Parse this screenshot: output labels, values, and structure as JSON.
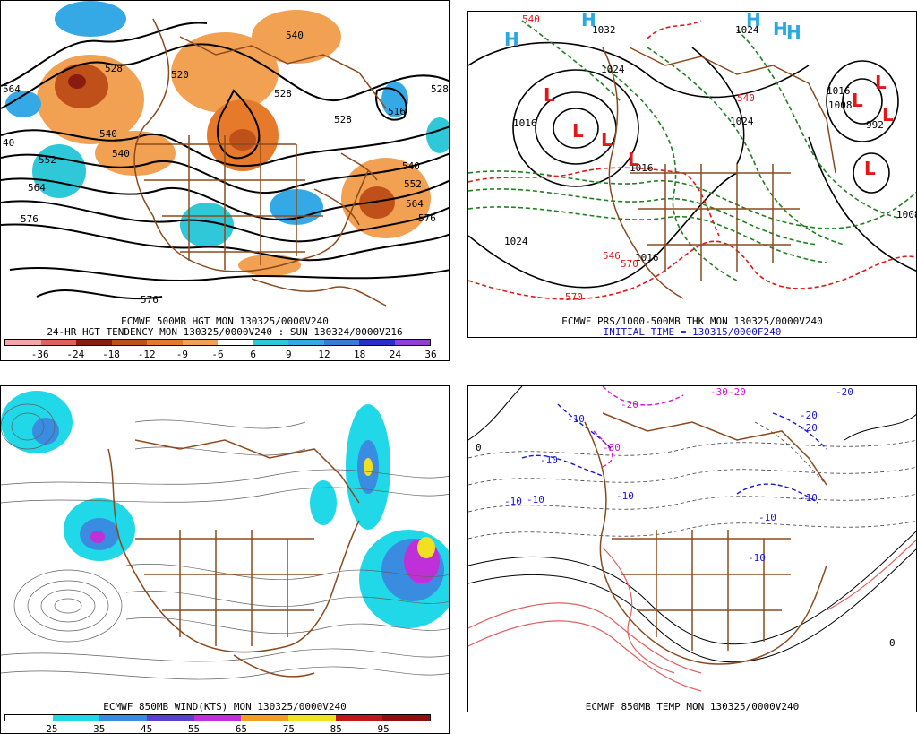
{
  "panels": {
    "hgt500": {
      "caption_line1": "ECMWF 500MB HGT MON 130325/0000V240",
      "caption_line2": "24-HR HGT TENDENCY MON 130325/0000V240 : SUN 130324/0000V216",
      "colorbar": {
        "ticks": [
          "-36",
          "-24",
          "-18",
          "-12",
          "-9",
          "-6",
          "6",
          "9",
          "12",
          "18",
          "24",
          "36"
        ],
        "colors": [
          "#f3a6a6",
          "#e06060",
          "#8b1a10",
          "#c0501a",
          "#e67a2a",
          "#f2a052",
          "#ffffff",
          "#2fc8d8",
          "#35a8e6",
          "#3a7ad8",
          "#2430c8",
          "#9040d8"
        ]
      },
      "contour_labels": [
        "564",
        "540",
        "528",
        "520",
        "528",
        "516",
        "528",
        "540",
        "552",
        "564",
        "576",
        "552",
        "564",
        "576",
        "576",
        "540",
        "528",
        "540",
        "40"
      ]
    },
    "thk": {
      "caption_line1": "ECMWF PRS/1000-500MB THK MON 130325/0000V240",
      "caption_line2": "INITIAL TIME = 130315/0000F240",
      "pressure_labels": [
        "1032",
        "1024",
        "1016",
        "1024",
        "1024",
        "1016",
        "1016",
        "1024",
        "1016",
        "1008",
        "992",
        "1008"
      ],
      "thickness_labels": [
        "540",
        "570",
        "540",
        "546",
        "570"
      ],
      "H_marks": [
        "H",
        "H",
        "H",
        "H",
        "H"
      ],
      "L_marks": [
        "L",
        "L",
        "L",
        "L",
        "L",
        "L",
        "L",
        "L"
      ]
    },
    "wind850": {
      "caption": "ECMWF 850MB WIND(KTS) MON 130325/0000V240",
      "colorbar": {
        "ticks": [
          "25",
          "35",
          "45",
          "55",
          "65",
          "75",
          "85",
          "95"
        ],
        "colors": [
          "#ffffff",
          "#20d8e8",
          "#3a8ce0",
          "#5a40d0",
          "#c030d8",
          "#f0a020",
          "#f0e020",
          "#c01818",
          "#901010"
        ]
      }
    },
    "temp850": {
      "caption": "ECMWF 850MB TEMP MON 130325/0000V240",
      "labels": [
        "-20",
        "-20",
        "-30",
        "-20",
        "-10",
        "-10",
        "-10",
        "-10",
        "-10",
        "-20",
        "-10",
        "-10",
        "-10",
        "-20",
        "-30",
        "0",
        "0"
      ]
    }
  },
  "colors": {
    "border": "#8b4a1e",
    "height_contour": "#000000",
    "thickness_cold": "#208020",
    "thickness_warm": "#e01818",
    "pressure": "#000000",
    "high": "#2aa8e0",
    "low": "#e01818",
    "temp_negative": "#1818d8",
    "temp_cold_extreme": "#d018d0",
    "temp_warm": "#e06060"
  }
}
